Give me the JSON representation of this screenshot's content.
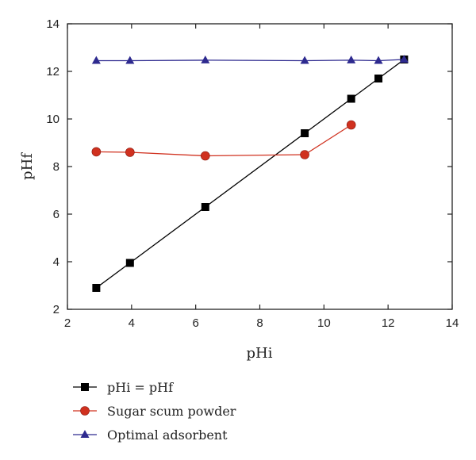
{
  "chart_data": {
    "type": "line",
    "xlabel": "pHi",
    "ylabel": "pHf",
    "xlim": [
      2,
      14
    ],
    "ylim": [
      2,
      14
    ],
    "xticks": [
      2,
      4,
      6,
      8,
      10,
      12,
      14
    ],
    "yticks": [
      2,
      4,
      6,
      8,
      10,
      12,
      14
    ],
    "grid": false,
    "legend_position": "bottom",
    "series": [
      {
        "name": "pHi = pHf",
        "marker": "square",
        "color": "#000000",
        "x": [
          2.9,
          3.95,
          6.3,
          9.4,
          10.85,
          11.7,
          12.5
        ],
        "y": [
          2.9,
          3.95,
          6.3,
          9.4,
          10.85,
          11.7,
          12.5
        ]
      },
      {
        "name": "Sugar scum powder",
        "marker": "circle",
        "color": "#d0311f",
        "x": [
          2.9,
          3.95,
          6.3,
          9.4,
          10.85
        ],
        "y": [
          8.62,
          8.6,
          8.45,
          8.5,
          9.75
        ]
      },
      {
        "name": "Optimal adsorbent",
        "marker": "triangle",
        "color": "#2e2a8f",
        "x": [
          2.9,
          3.95,
          6.3,
          9.4,
          10.85,
          11.7,
          12.5
        ],
        "y": [
          12.45,
          12.45,
          12.47,
          12.45,
          12.47,
          12.45,
          12.5
        ]
      }
    ]
  }
}
